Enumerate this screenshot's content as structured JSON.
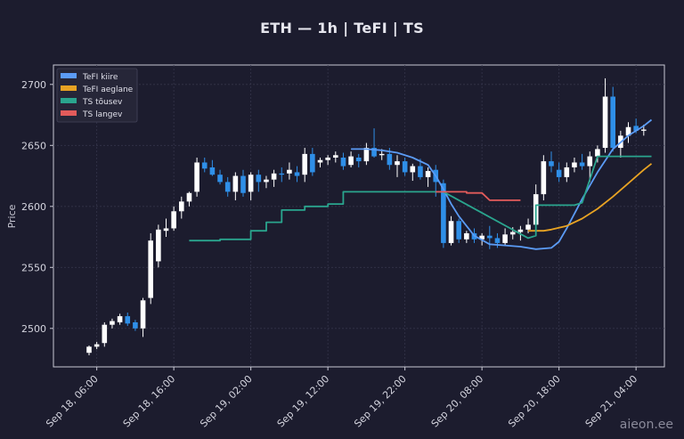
{
  "title": "ETH — 1h  |  TeFI  |  TS",
  "watermark": "aieon.ee",
  "colors": {
    "background": "#1c1c2e",
    "bull": "#ffffff",
    "bear": "#2f8fe8",
    "fast": "#5b9bf5",
    "slow": "#e8a323",
    "ts_up": "#2aa58e",
    "ts_down": "#e35b5b"
  },
  "chart_data": {
    "type": "candlestick",
    "ylabel": "Price",
    "xlabel": "",
    "ylim": [
      2470,
      2720
    ],
    "yticks": [
      2500,
      2550,
      2600,
      2650,
      2700
    ],
    "grid": true,
    "legend": {
      "position": "top-left",
      "items": [
        {
          "label": "TeFI kiire",
          "color": "#5b9bf5"
        },
        {
          "label": "TeFI aeglane",
          "color": "#e8a323"
        },
        {
          "label": "TS tõusev",
          "color": "#2aa58e"
        },
        {
          "label": "TS langev",
          "color": "#e35b5b"
        }
      ]
    },
    "xticks": [
      {
        "index": 1,
        "label": "Sep 18, 06:00"
      },
      {
        "index": 11,
        "label": "Sep 18, 16:00"
      },
      {
        "index": 21,
        "label": "Sep 19, 02:00"
      },
      {
        "index": 31,
        "label": "Sep 19, 12:00"
      },
      {
        "index": 41,
        "label": "Sep 19, 22:00"
      },
      {
        "index": 51,
        "label": "Sep 20, 08:00"
      },
      {
        "index": 61,
        "label": "Sep 20, 18:00"
      },
      {
        "index": 71,
        "label": "Sep 21, 04:00"
      }
    ],
    "candles": [
      [
        2480,
        2486,
        2478,
        2485
      ],
      [
        2485,
        2489,
        2483,
        2487
      ],
      [
        2488,
        2505,
        2485,
        2503
      ],
      [
        2503,
        2508,
        2500,
        2506
      ],
      [
        2505,
        2512,
        2503,
        2510
      ],
      [
        2510,
        2513,
        2502,
        2504
      ],
      [
        2505,
        2507,
        2498,
        2500
      ],
      [
        2500,
        2525,
        2493,
        2523
      ],
      [
        2525,
        2578,
        2520,
        2572
      ],
      [
        2555,
        2585,
        2550,
        2581
      ],
      [
        2580,
        2590,
        2575,
        2582
      ],
      [
        2582,
        2600,
        2580,
        2596
      ],
      [
        2596,
        2608,
        2590,
        2604
      ],
      [
        2604,
        2612,
        2600,
        2611
      ],
      [
        2612,
        2640,
        2608,
        2636
      ],
      [
        2636,
        2640,
        2628,
        2631
      ],
      [
        2632,
        2638,
        2625,
        2626
      ],
      [
        2626,
        2630,
        2618,
        2620
      ],
      [
        2620,
        2624,
        2608,
        2612
      ],
      [
        2612,
        2628,
        2605,
        2625
      ],
      [
        2625,
        2630,
        2608,
        2611
      ],
      [
        2612,
        2628,
        2605,
        2626
      ],
      [
        2626,
        2630,
        2612,
        2620
      ],
      [
        2620,
        2625,
        2615,
        2622
      ],
      [
        2622,
        2630,
        2616,
        2627
      ],
      [
        2627,
        2632,
        2620,
        2626
      ],
      [
        2627,
        2636,
        2622,
        2630
      ],
      [
        2628,
        2633,
        2620,
        2625
      ],
      [
        2626,
        2648,
        2620,
        2643
      ],
      [
        2643,
        2648,
        2625,
        2628
      ],
      [
        2636,
        2640,
        2632,
        2638
      ],
      [
        2638,
        2642,
        2634,
        2640
      ],
      [
        2640,
        2645,
        2636,
        2642
      ],
      [
        2640,
        2644,
        2630,
        2633
      ],
      [
        2634,
        2645,
        2632,
        2641
      ],
      [
        2640,
        2643,
        2632,
        2637
      ],
      [
        2637,
        2652,
        2634,
        2648
      ],
      [
        2648,
        2664,
        2640,
        2641
      ],
      [
        2642,
        2647,
        2638,
        2643
      ],
      [
        2643,
        2648,
        2630,
        2634
      ],
      [
        2634,
        2642,
        2624,
        2637
      ],
      [
        2637,
        2640,
        2625,
        2628
      ],
      [
        2628,
        2635,
        2621,
        2633
      ],
      [
        2633,
        2639,
        2622,
        2624
      ],
      [
        2624,
        2632,
        2616,
        2629
      ],
      [
        2630,
        2634,
        2608,
        2620
      ],
      [
        2619,
        2622,
        2566,
        2570
      ],
      [
        2570,
        2592,
        2568,
        2588
      ],
      [
        2588,
        2590,
        2570,
        2573
      ],
      [
        2573,
        2580,
        2570,
        2578
      ],
      [
        2578,
        2582,
        2570,
        2573
      ],
      [
        2573,
        2578,
        2568,
        2576
      ],
      [
        2576,
        2584,
        2565,
        2574
      ],
      [
        2574,
        2578,
        2566,
        2570
      ],
      [
        2570,
        2582,
        2568,
        2577
      ],
      [
        2577,
        2583,
        2573,
        2579
      ],
      [
        2579,
        2584,
        2572,
        2581
      ],
      [
        2581,
        2590,
        2578,
        2585
      ],
      [
        2585,
        2618,
        2582,
        2610
      ],
      [
        2610,
        2642,
        2605,
        2637
      ],
      [
        2637,
        2645,
        2628,
        2633
      ],
      [
        2630,
        2636,
        2620,
        2624
      ],
      [
        2624,
        2636,
        2620,
        2632
      ],
      [
        2632,
        2640,
        2628,
        2636
      ],
      [
        2636,
        2643,
        2630,
        2633
      ],
      [
        2633,
        2645,
        2620,
        2641
      ],
      [
        2641,
        2650,
        2636,
        2647
      ],
      [
        2648,
        2705,
        2644,
        2690
      ],
      [
        2690,
        2698,
        2645,
        2648
      ],
      [
        2648,
        2662,
        2640,
        2658
      ],
      [
        2658,
        2669,
        2652,
        2665
      ],
      [
        2666,
        2672,
        2660,
        2662
      ],
      [
        2662,
        2667,
        2658,
        2663
      ]
    ],
    "series": [
      {
        "name": "TeFI kiire",
        "color": "#5b9bf5",
        "points": [
          [
            34,
            2647
          ],
          [
            36,
            2647
          ],
          [
            38,
            2646
          ],
          [
            40,
            2644
          ],
          [
            42,
            2640
          ],
          [
            44,
            2634
          ],
          [
            45,
            2625
          ],
          [
            46,
            2614
          ],
          [
            47,
            2602
          ],
          [
            48,
            2592
          ],
          [
            50,
            2576
          ],
          [
            52,
            2569
          ],
          [
            54,
            2568
          ],
          [
            56,
            2567
          ],
          [
            58,
            2565
          ],
          [
            60,
            2566
          ],
          [
            61,
            2571
          ],
          [
            62,
            2582
          ],
          [
            64,
            2606
          ],
          [
            66,
            2628
          ],
          [
            68,
            2647
          ],
          [
            70,
            2658
          ],
          [
            72,
            2666
          ],
          [
            73,
            2671
          ]
        ]
      },
      {
        "name": "TeFI aeglane",
        "color": "#e8a323",
        "points": [
          [
            57,
            2580
          ],
          [
            59,
            2580
          ],
          [
            60,
            2581
          ],
          [
            62,
            2584
          ],
          [
            64,
            2590
          ],
          [
            66,
            2598
          ],
          [
            68,
            2608
          ],
          [
            70,
            2619
          ],
          [
            72,
            2630
          ],
          [
            73,
            2635
          ]
        ]
      },
      {
        "name": "TS tõusev",
        "color": "#2aa58e",
        "points": [
          [
            13,
            2572
          ],
          [
            17,
            2572
          ],
          [
            17,
            2573
          ],
          [
            21,
            2573
          ],
          [
            21,
            2580
          ],
          [
            23,
            2580
          ],
          [
            23,
            2587
          ],
          [
            25,
            2587
          ],
          [
            25,
            2597
          ],
          [
            28,
            2597
          ],
          [
            28,
            2600
          ],
          [
            31,
            2600
          ],
          [
            31,
            2602
          ],
          [
            33,
            2602
          ],
          [
            33,
            2612
          ],
          [
            46,
            2612
          ],
          [
            57,
            2574
          ],
          [
            58,
            2576
          ],
          [
            58,
            2601
          ],
          [
            63,
            2601
          ],
          [
            64,
            2603
          ],
          [
            66,
            2641
          ],
          [
            73,
            2641
          ]
        ]
      },
      {
        "name": "TS langev",
        "color": "#e35b5b",
        "points": [
          [
            45,
            2612
          ],
          [
            49,
            2612
          ],
          [
            49,
            2611
          ],
          [
            51,
            2611
          ],
          [
            52,
            2605
          ],
          [
            56,
            2605
          ]
        ]
      }
    ]
  }
}
